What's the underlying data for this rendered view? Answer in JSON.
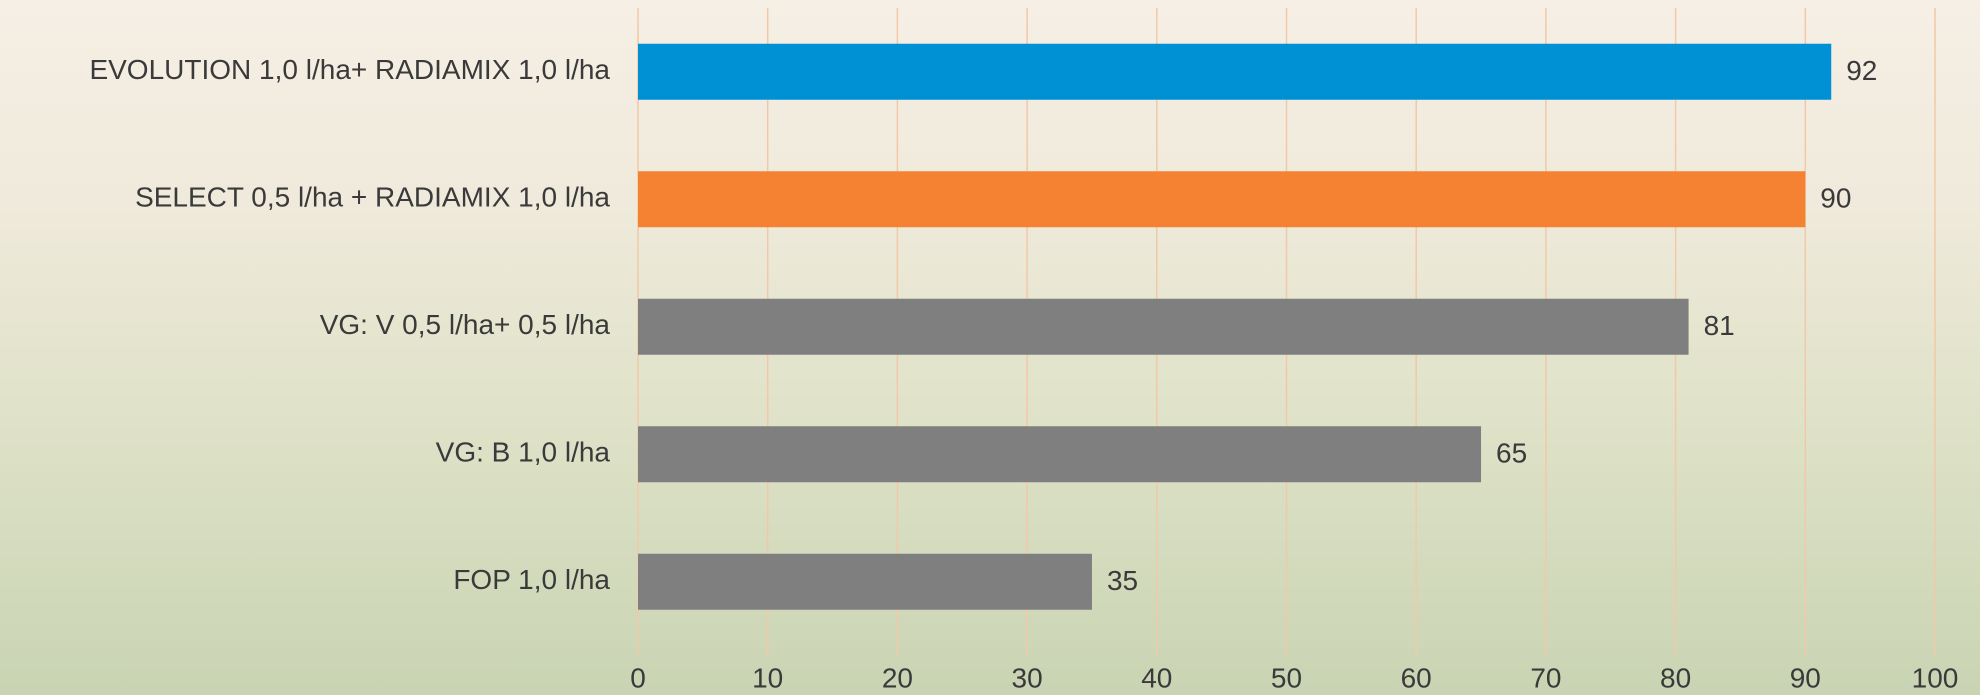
{
  "chart_data": {
    "type": "bar",
    "orientation": "horizontal",
    "categories": [
      "EVOLUTION 1,0 l/ha+ RADIAMIX 1,0 l/ha",
      "SELECT 0,5 l/ha + RADIAMIX 1,0 l/ha",
      "VG: V 0,5 l/ha+ 0,5 l/ha",
      "VG: B 1,0 l/ha",
      "FOP 1,0 l/ha"
    ],
    "values": [
      92,
      90,
      81,
      65,
      35
    ],
    "colors": [
      "#0090d4",
      "#f58232",
      "#7f7f7f",
      "#7f7f7f",
      "#7f7f7f"
    ],
    "xlim": [
      0,
      100
    ],
    "xticks": [
      0,
      10,
      20,
      30,
      40,
      50,
      60,
      70,
      80,
      90,
      100
    ],
    "grid": true
  }
}
